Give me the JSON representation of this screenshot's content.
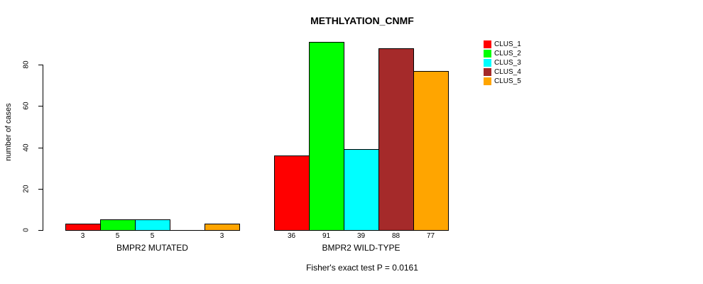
{
  "title": "METHLYATION_CNMF",
  "footer": "Fisher's exact test P = 0.0161",
  "chart_data": {
    "type": "bar",
    "title": "METHLYATION_CNMF",
    "xlabel": "",
    "ylabel": "number of cases",
    "ylim": [
      0,
      80
    ],
    "yticks": [
      0,
      20,
      40,
      60,
      80
    ],
    "grid": false,
    "legend_position": "right-outside-top",
    "groups": [
      "BMPR2 MUTATED",
      "BMPR2 WILD-TYPE"
    ],
    "series": [
      {
        "name": "CLUS_1",
        "color": "#FF0000",
        "values": [
          3,
          36
        ]
      },
      {
        "name": "CLUS_2",
        "color": "#00FF00",
        "values": [
          5,
          91
        ]
      },
      {
        "name": "CLUS_3",
        "color": "#00FFFF",
        "values": [
          5,
          39
        ]
      },
      {
        "name": "CLUS_4",
        "color": "#A52A2A",
        "values": [
          0,
          88
        ]
      },
      {
        "name": "CLUS_5",
        "color": "#FFA500",
        "values": [
          3,
          77
        ]
      }
    ],
    "bar_value_labels": {
      "BMPR2 MUTATED": [
        "3",
        "5",
        "5",
        "",
        "3"
      ],
      "BMPR2 WILD-TYPE": [
        "36",
        "91",
        "39",
        "88",
        "77"
      ]
    },
    "annotation": "Fisher's exact test P = 0.0161"
  },
  "legend": {
    "items": [
      {
        "label": "CLUS_1",
        "color": "#FF0000"
      },
      {
        "label": "CLUS_2",
        "color": "#00FF00"
      },
      {
        "label": "CLUS_3",
        "color": "#00FFFF"
      },
      {
        "label": "CLUS_4",
        "color": "#A52A2A"
      },
      {
        "label": "CLUS_5",
        "color": "#FFA500"
      }
    ]
  }
}
